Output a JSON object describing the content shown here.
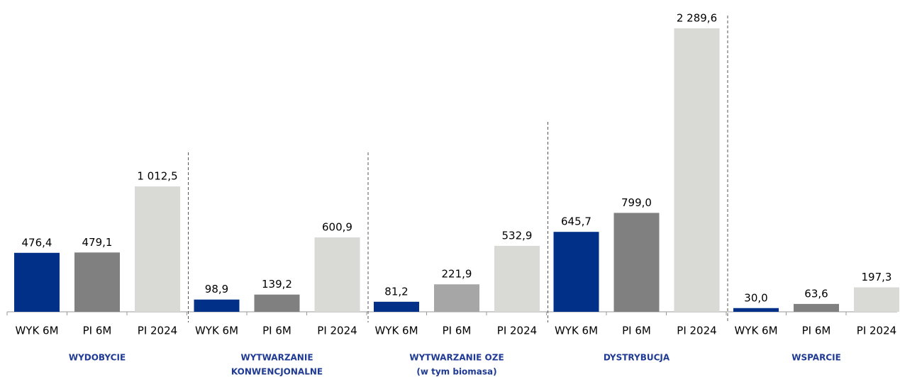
{
  "chart_data": {
    "type": "bar",
    "categories": [
      [
        "WYDOBYCIE"
      ],
      [
        "WYTWARZANIE",
        "KONWENCJONALNE"
      ],
      [
        "WYTWARZANIE OZE",
        "(w tym biomasa)"
      ],
      [
        "DYSTRYBUCJA"
      ],
      [
        "WSPARCIE"
      ]
    ],
    "series": [
      {
        "name": "WYK 6M",
        "colors": [
          "#003087",
          "#003087",
          "#003087",
          "#003087",
          "#003087"
        ],
        "values": [
          476.4,
          98.9,
          81.2,
          645.7,
          30.0
        ],
        "value_labels": [
          "476,4",
          "98,9",
          "81,2",
          "645,7",
          "30,0"
        ]
      },
      {
        "name": "PI 6M",
        "colors": [
          "#808080",
          "#808080",
          "#a6a6a6",
          "#808080",
          "#808080"
        ],
        "values": [
          479.1,
          139.2,
          221.9,
          799.0,
          63.6
        ],
        "value_labels": [
          "479,1",
          "139,2",
          "221,9",
          "799,0",
          "63,6"
        ]
      },
      {
        "name": "PI 2024",
        "colors": [
          "#d9d9d6",
          "#d9d9d6",
          "#d9d9d6",
          "#d9d9d6",
          "#d9d9d6"
        ],
        "values": [
          1012.5,
          600.9,
          532.9,
          2289.6,
          197.3
        ],
        "value_labels": [
          "1 012,5",
          "600,9",
          "532,9",
          "2 289,6",
          "197,3"
        ]
      }
    ]
  }
}
